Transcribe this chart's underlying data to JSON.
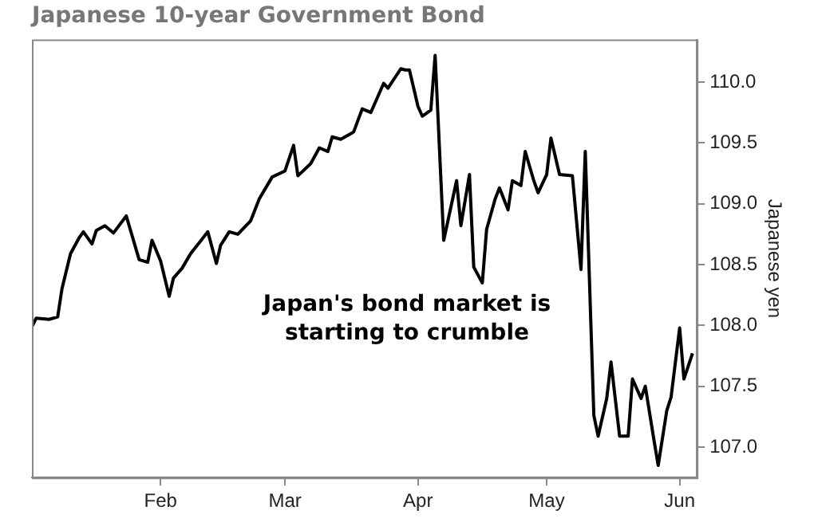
{
  "chart_data": {
    "type": "line",
    "title": "Japanese 10-year Government Bond",
    "ylabel": "Japanese yen",
    "x": [
      "--01-02",
      "--01-03",
      "--01-06",
      "--01-08",
      "--01-09",
      "--01-11",
      "--01-13",
      "--01-14",
      "--01-16",
      "--01-17",
      "--01-19",
      "--01-21",
      "--01-24",
      "--01-27",
      "--01-29",
      "--01-30",
      "--02-01",
      "--02-03",
      "--02-04",
      "--02-06",
      "--02-08",
      "--02-12",
      "--02-14",
      "--02-15",
      "--02-17",
      "--02-19",
      "--02-22",
      "--02-24",
      "--02-27",
      "--03-01",
      "--03-03",
      "--03-04",
      "--03-07",
      "--03-09",
      "--03-11",
      "--03-12",
      "--03-14",
      "--03-16",
      "--03-17",
      "--03-19",
      "--03-21",
      "--03-24",
      "--03-25",
      "--03-28",
      "--03-29",
      "--03-30",
      "--04-01",
      "--04-02",
      "--04-04",
      "--04-05",
      "--04-07",
      "--04-10",
      "--04-11",
      "--04-13",
      "--04-14",
      "--04-16",
      "--04-17",
      "--04-19",
      "--04-20",
      "--04-22",
      "--04-23",
      "--04-25",
      "--04-26",
      "--04-28",
      "--04-29",
      "--05-01",
      "--05-02",
      "--05-04",
      "--05-07",
      "--05-09",
      "--05-10",
      "--05-12",
      "--05-13",
      "--05-15",
      "--05-16",
      "--05-18",
      "--05-20",
      "--05-21",
      "--05-23",
      "--05-24",
      "--05-26",
      "--05-27",
      "--05-29",
      "--05-30",
      "--06-01",
      "--06-02",
      "--06-04"
    ],
    "series": [
      {
        "color": "#000000",
        "values": [
          107.99,
          108.06,
          108.05,
          108.07,
          108.3,
          108.59,
          108.72,
          108.77,
          108.67,
          108.78,
          108.82,
          108.76,
          108.9,
          108.54,
          108.52,
          108.7,
          108.53,
          108.24,
          108.39,
          108.47,
          108.59,
          108.77,
          108.51,
          108.66,
          108.77,
          108.75,
          108.86,
          109.04,
          109.22,
          109.27,
          109.48,
          109.23,
          109.33,
          109.46,
          109.43,
          109.55,
          109.53,
          109.57,
          109.59,
          109.78,
          109.75,
          109.99,
          109.95,
          110.11,
          110.1,
          110.1,
          109.8,
          109.72,
          109.77,
          110.22,
          108.7,
          109.19,
          108.82,
          109.24,
          108.48,
          108.35,
          108.79,
          109.04,
          109.13,
          108.95,
          109.19,
          109.15,
          109.43,
          109.19,
          109.09,
          109.24,
          109.54,
          109.24,
          109.23,
          108.46,
          109.43,
          107.26,
          107.09,
          107.4,
          107.7,
          107.09,
          107.09,
          107.56,
          107.4,
          107.5,
          107.06,
          106.85,
          107.3,
          107.41,
          107.98,
          107.56,
          107.77
        ]
      }
    ],
    "xlim": [
      "--01-02",
      "--06-05"
    ],
    "xticks": [
      {
        "value": "--02-01",
        "label": "Feb"
      },
      {
        "value": "--03-01",
        "label": "Mar"
      },
      {
        "value": "--04-01",
        "label": "Apr"
      },
      {
        "value": "--05-01",
        "label": "May"
      },
      {
        "value": "--06-01",
        "label": "Jun"
      }
    ],
    "ylim": [
      106.75,
      110.35
    ],
    "yticks": [
      {
        "value": 107,
        "label": "107.0"
      },
      {
        "value": 107.5,
        "label": "107.5"
      },
      {
        "value": 108,
        "label": "108.0"
      },
      {
        "value": 108.5,
        "label": "108.5"
      },
      {
        "value": 109,
        "label": "109.0"
      },
      {
        "value": 109.5,
        "label": "109.5"
      },
      {
        "value": 110,
        "label": "110.0"
      }
    ],
    "annotations": [
      "Japan's bond market is starting to crumble"
    ],
    "marker": "none",
    "line_style": "solid",
    "grid": false,
    "legend": false
  }
}
